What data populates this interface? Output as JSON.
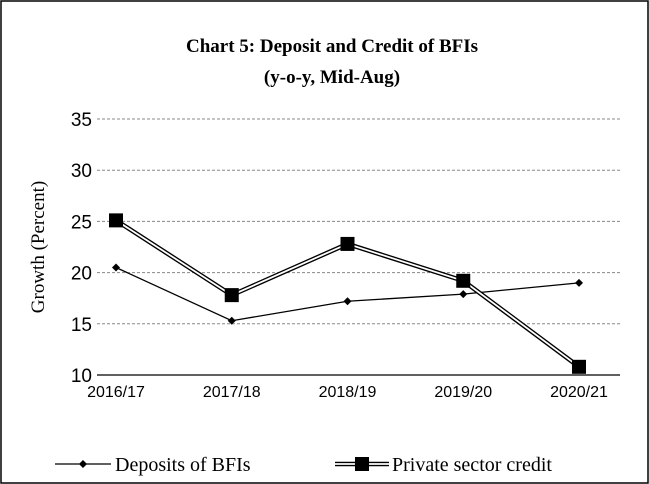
{
  "chart_data": {
    "type": "line",
    "title": "Chart 5:  Deposit and Credit of BFIs",
    "subtitle": "(y-o-y, Mid-Aug)",
    "y_label": "Growth (Percent)",
    "categories": [
      "2016/17",
      "2017/18",
      "2018/19",
      "2019/20",
      "2020/21"
    ],
    "series": [
      {
        "name": "Deposits of BFIs",
        "color": "#000000",
        "values": [
          20.5,
          15.3,
          17.2,
          17.9,
          19.0
        ]
      },
      {
        "name": "Private sector credit",
        "color": "#000000",
        "values": [
          25.1,
          17.8,
          22.8,
          19.2,
          10.8
        ]
      }
    ],
    "ylim": [
      10,
      35
    ],
    "yticks": [
      10,
      15,
      20,
      25,
      30,
      35
    ],
    "grid": true,
    "legend": "bottom"
  }
}
